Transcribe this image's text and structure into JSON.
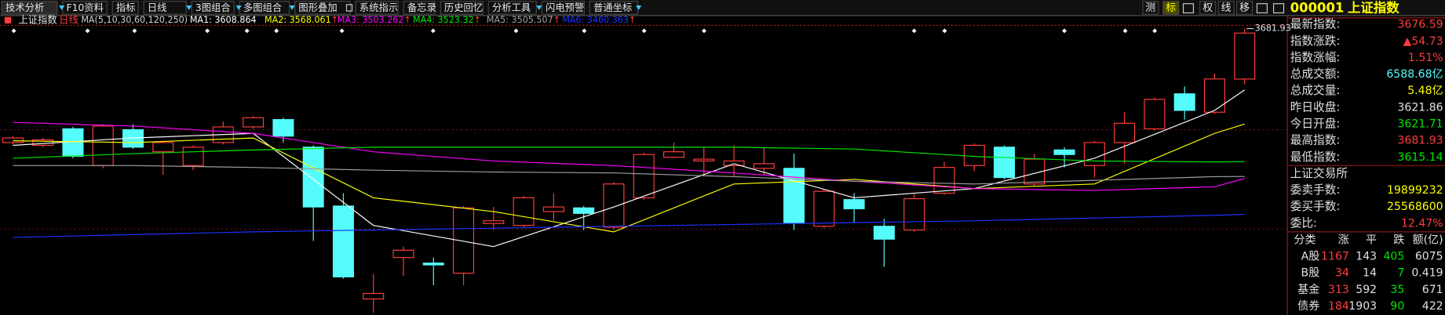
{
  "toolbar": {
    "tabs": [
      "技术分析",
      "F10资料",
      "指标",
      "日线",
      "3图组合",
      "多图组合",
      "图形叠加",
      "系统指示",
      "备忘录",
      "历史回忆",
      "分析工具",
      "闪电预警",
      "普通坐标"
    ],
    "right_buttons": [
      "测",
      "标",
      "权",
      "线",
      "移"
    ],
    "code": "000001",
    "name": "上证指数"
  },
  "chart_data": {
    "type": "candlestick",
    "title": "上证指数",
    "period": "日线",
    "ma_label": "MA(5,10,30,60,120,250)",
    "up_color": "#ff3c3c",
    "down_color": "#54fcfc",
    "ylim": [
      3341,
      3686
    ],
    "open": [
      3545.97,
      3542.68,
      3562.44,
      3518.53,
      3561.34,
      3535.0,
      3518.53,
      3545.97,
      3564.63,
      3573.41,
      3540.48,
      3470.24,
      3359.38,
      3408.77,
      3402.19,
      3390.11,
      3449.38,
      3447.19,
      3463.65,
      3468.04,
      3444.99,
      3480.12,
      3528.41,
      3524.02,
      3518.53,
      3515.24,
      3515.24,
      3446.09,
      3477.93,
      3446.09,
      3441.7,
      3485.6,
      3518.53,
      3540.48,
      3496.58,
      3537.19,
      3518.53,
      3545.97,
      3562.44,
      3604.14,
      3582.19,
      3621.71
    ],
    "high": [
      3553.66,
      3551.46,
      3564.63,
      3567.92,
      3567.92,
      3548.17,
      3542.68,
      3571.22,
      3577.8,
      3575.61,
      3542.68,
      3485.6,
      3389.02,
      3421.94,
      3408.77,
      3470.24,
      3469.14,
      3482.32,
      3485.6,
      3470.24,
      3498.78,
      3533.9,
      3545.97,
      3540.48,
      3542.68,
      3540.48,
      3532.8,
      3490.0,
      3485.6,
      3454.87,
      3485.6,
      3522.92,
      3544.87,
      3542.68,
      3532.8,
      3540.48,
      3548.17,
      3582.19,
      3599.75,
      3612.93,
      3628.3,
      3681.93
    ],
    "low": [
      3543.78,
      3540.48,
      3527.31,
      3515.24,
      3538.29,
      3507.56,
      3513.04,
      3543.78,
      3562.44,
      3545.97,
      3428.53,
      3383.53,
      3342.92,
      3386.82,
      3375.84,
      3375.84,
      3441.7,
      3445.0,
      3452.68,
      3441.7,
      3441.7,
      3477.93,
      3527.31,
      3507.56,
      3505.36,
      3507.56,
      3441.7,
      3443.9,
      3450.48,
      3397.8,
      3439.5,
      3483.41,
      3511.95,
      3502.07,
      3494.38,
      3516.34,
      3504.26,
      3520.73,
      3560.24,
      3573.41,
      3580.0,
      3615.14
    ],
    "close": [
      3551.46,
      3549.27,
      3529.51,
      3565.73,
      3540.48,
      3545.97,
      3540.48,
      3564.63,
      3575.61,
      3553.66,
      3469.14,
      3385.72,
      3365.97,
      3417.55,
      3400.0,
      3468.04,
      3452.68,
      3480.12,
      3469.14,
      3461.46,
      3496.58,
      3531.7,
      3535.0,
      3526.22,
      3524.02,
      3520.73,
      3450.48,
      3487.8,
      3466.94,
      3430.72,
      3479.02,
      3516.34,
      3542.68,
      3504.26,
      3526.22,
      3531.7,
      3545.97,
      3569.02,
      3597.56,
      3584.39,
      3621.86,
      3676.59
    ],
    "series": [
      {
        "name": "MA1:",
        "color": "#ffffff",
        "x": [
          0,
          4,
          8,
          12,
          16,
          20,
          24,
          28,
          32,
          36,
          40,
          41
        ],
        "values": [
          3542.68,
          3551.46,
          3556.95,
          3447.19,
          3421.94,
          3469.14,
          3520.73,
          3480.12,
          3491.09,
          3527.31,
          3584.39,
          3608.864
        ]
      },
      {
        "name": "MA2:",
        "color": "#ffff00",
        "trend": "↑",
        "x": [
          0,
          4,
          8,
          12,
          16,
          20,
          24,
          28,
          32,
          36,
          40,
          41
        ],
        "values": [
          3548.17,
          3545.97,
          3551.46,
          3480.12,
          3463.65,
          3439.5,
          3496.58,
          3502.07,
          3491.09,
          3496.58,
          3556.95,
          3568.061
        ]
      },
      {
        "name": "MA3:",
        "color": "#ff00ff",
        "trend": "↑",
        "x": [
          0,
          4,
          8,
          12,
          16,
          20,
          24,
          28,
          32,
          36,
          40,
          41
        ],
        "values": [
          3570.12,
          3565.73,
          3556.95,
          3535.0,
          3524.02,
          3518.53,
          3509.75,
          3499.87,
          3491.09,
          3488.9,
          3493.29,
          3503.262
        ]
      },
      {
        "name": "MA4:",
        "color": "#00e600",
        "trend": "↑",
        "x": [
          0,
          4,
          8,
          12,
          16,
          20,
          24,
          28,
          32,
          36,
          40,
          41
        ],
        "values": [
          3527.31,
          3532.8,
          3537.19,
          3540.48,
          3540.48,
          3540.48,
          3540.48,
          3538.29,
          3529.51,
          3524.02,
          3522.92,
          3523.32
        ]
      },
      {
        "name": "MA5:",
        "color": "#a0a0a0",
        "trend": "↑",
        "x": [
          0,
          4,
          8,
          12,
          16,
          20,
          24,
          28,
          32,
          36,
          40,
          41
        ],
        "values": [
          3518.53,
          3518.53,
          3516.34,
          3513.04,
          3510.85,
          3509.75,
          3505.36,
          3499.87,
          3496.58,
          3500.97,
          3505.36,
          3505.507
        ]
      },
      {
        "name": "MA6:",
        "color": "#1e32ff",
        "trend": "↑",
        "x": [
          0,
          4,
          8,
          12,
          16,
          20,
          24,
          28,
          32,
          36,
          40,
          41
        ],
        "values": [
          3432.92,
          3436.21,
          3439.5,
          3441.7,
          3443.9,
          3446.09,
          3448.29,
          3450.48,
          3452.68,
          3455.97,
          3459.26,
          3460.363
        ]
      }
    ]
  },
  "quote_panel": {
    "rows": [
      {
        "label": "最新指数:",
        "value": "3676.59",
        "color": "#ff3c3c"
      },
      {
        "label": "指数涨跌:",
        "value": "▲54.73",
        "color": "#ff3c3c"
      },
      {
        "label": "指数涨幅:",
        "value": "1.51%",
        "color": "#ff3c3c"
      },
      {
        "label": "总成交额:",
        "value": "6588.68亿",
        "color": "#54fcfc"
      },
      {
        "label": "总成交量:",
        "value": "5.48亿",
        "color": "#ffff00"
      },
      {
        "label": "昨日收盘:",
        "value": "3621.86",
        "color": "#e0e0e0"
      },
      {
        "label": "今日开盘:",
        "value": "3621.71",
        "color": "#00e600"
      },
      {
        "label": "最高指数:",
        "value": "3681.93",
        "color": "#ff3c3c"
      },
      {
        "label": "最低指数:",
        "value": "3615.14",
        "color": "#00e600"
      }
    ],
    "exchange": "上证交易所",
    "order_rows": [
      {
        "label": "委卖手数:",
        "value": "19899232",
        "color": "#ffff00"
      },
      {
        "label": "委买手数:",
        "value": "25568600",
        "color": "#ffff00"
      },
      {
        "label": "委比:",
        "value": "12.47%",
        "color": "#ff3c3c"
      }
    ],
    "table": {
      "header": [
        "分类",
        "涨",
        "平",
        "跌",
        "额(亿)"
      ],
      "column_colors": [
        "#e0e0e0",
        "#ff3c3c",
        "#e0e0e0",
        "#00e600",
        "#e0e0e0"
      ],
      "rows": [
        [
          "A股",
          1167,
          143,
          405,
          6075
        ],
        [
          "B股",
          34,
          14,
          7,
          0.419
        ],
        [
          "基金",
          313,
          592,
          35,
          671
        ],
        [
          "债券",
          184,
          1903,
          90,
          422
        ]
      ]
    }
  }
}
